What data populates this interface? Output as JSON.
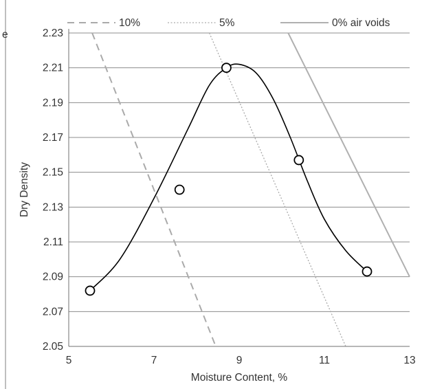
{
  "chart_data": {
    "type": "scatter",
    "title": "",
    "xlabel": "Moisture Content, %",
    "ylabel": "Dry Density",
    "xlim": [
      5,
      13
    ],
    "ylim": [
      2.05,
      2.23
    ],
    "x_ticks": [
      "5",
      "7",
      "9",
      "11",
      "13"
    ],
    "y_ticks": [
      "2.05",
      "2.07",
      "2.09",
      "2.11",
      "2.13",
      "2.15",
      "2.17",
      "2.19",
      "2.21",
      "2.23"
    ],
    "grid": "horizontal",
    "legend_position": "top",
    "series": [
      {
        "name": "10%",
        "type": "line",
        "style": "dashed",
        "color": "#aaaaaa",
        "points": [
          [
            5.55,
            2.23
          ],
          [
            8.45,
            2.05
          ]
        ]
      },
      {
        "name": "5%",
        "type": "line",
        "style": "dotted",
        "color": "#aaaaaa",
        "points": [
          [
            8.3,
            2.23
          ],
          [
            11.5,
            2.05
          ]
        ]
      },
      {
        "name": "0% air voids",
        "type": "line",
        "style": "solid",
        "color": "#b0b0b0",
        "points": [
          [
            10.15,
            2.23
          ],
          [
            13.0,
            2.09
          ]
        ]
      },
      {
        "name": "",
        "type": "scatter",
        "color": "#000000",
        "points": [
          [
            5.5,
            2.082
          ],
          [
            7.6,
            2.14
          ],
          [
            8.7,
            2.21
          ],
          [
            10.4,
            2.157
          ],
          [
            12.0,
            2.093
          ]
        ]
      },
      {
        "name": "",
        "type": "smooth-line",
        "color": "#000000",
        "points": [
          [
            5.5,
            2.082
          ],
          [
            6.2,
            2.1
          ],
          [
            7.0,
            2.135
          ],
          [
            7.8,
            2.175
          ],
          [
            8.3,
            2.2
          ],
          [
            8.7,
            2.21
          ],
          [
            9.0,
            2.212
          ],
          [
            9.4,
            2.207
          ],
          [
            9.8,
            2.192
          ],
          [
            10.2,
            2.17
          ],
          [
            10.6,
            2.145
          ],
          [
            11.0,
            2.123
          ],
          [
            11.5,
            2.105
          ],
          [
            12.0,
            2.093
          ]
        ]
      }
    ]
  }
}
